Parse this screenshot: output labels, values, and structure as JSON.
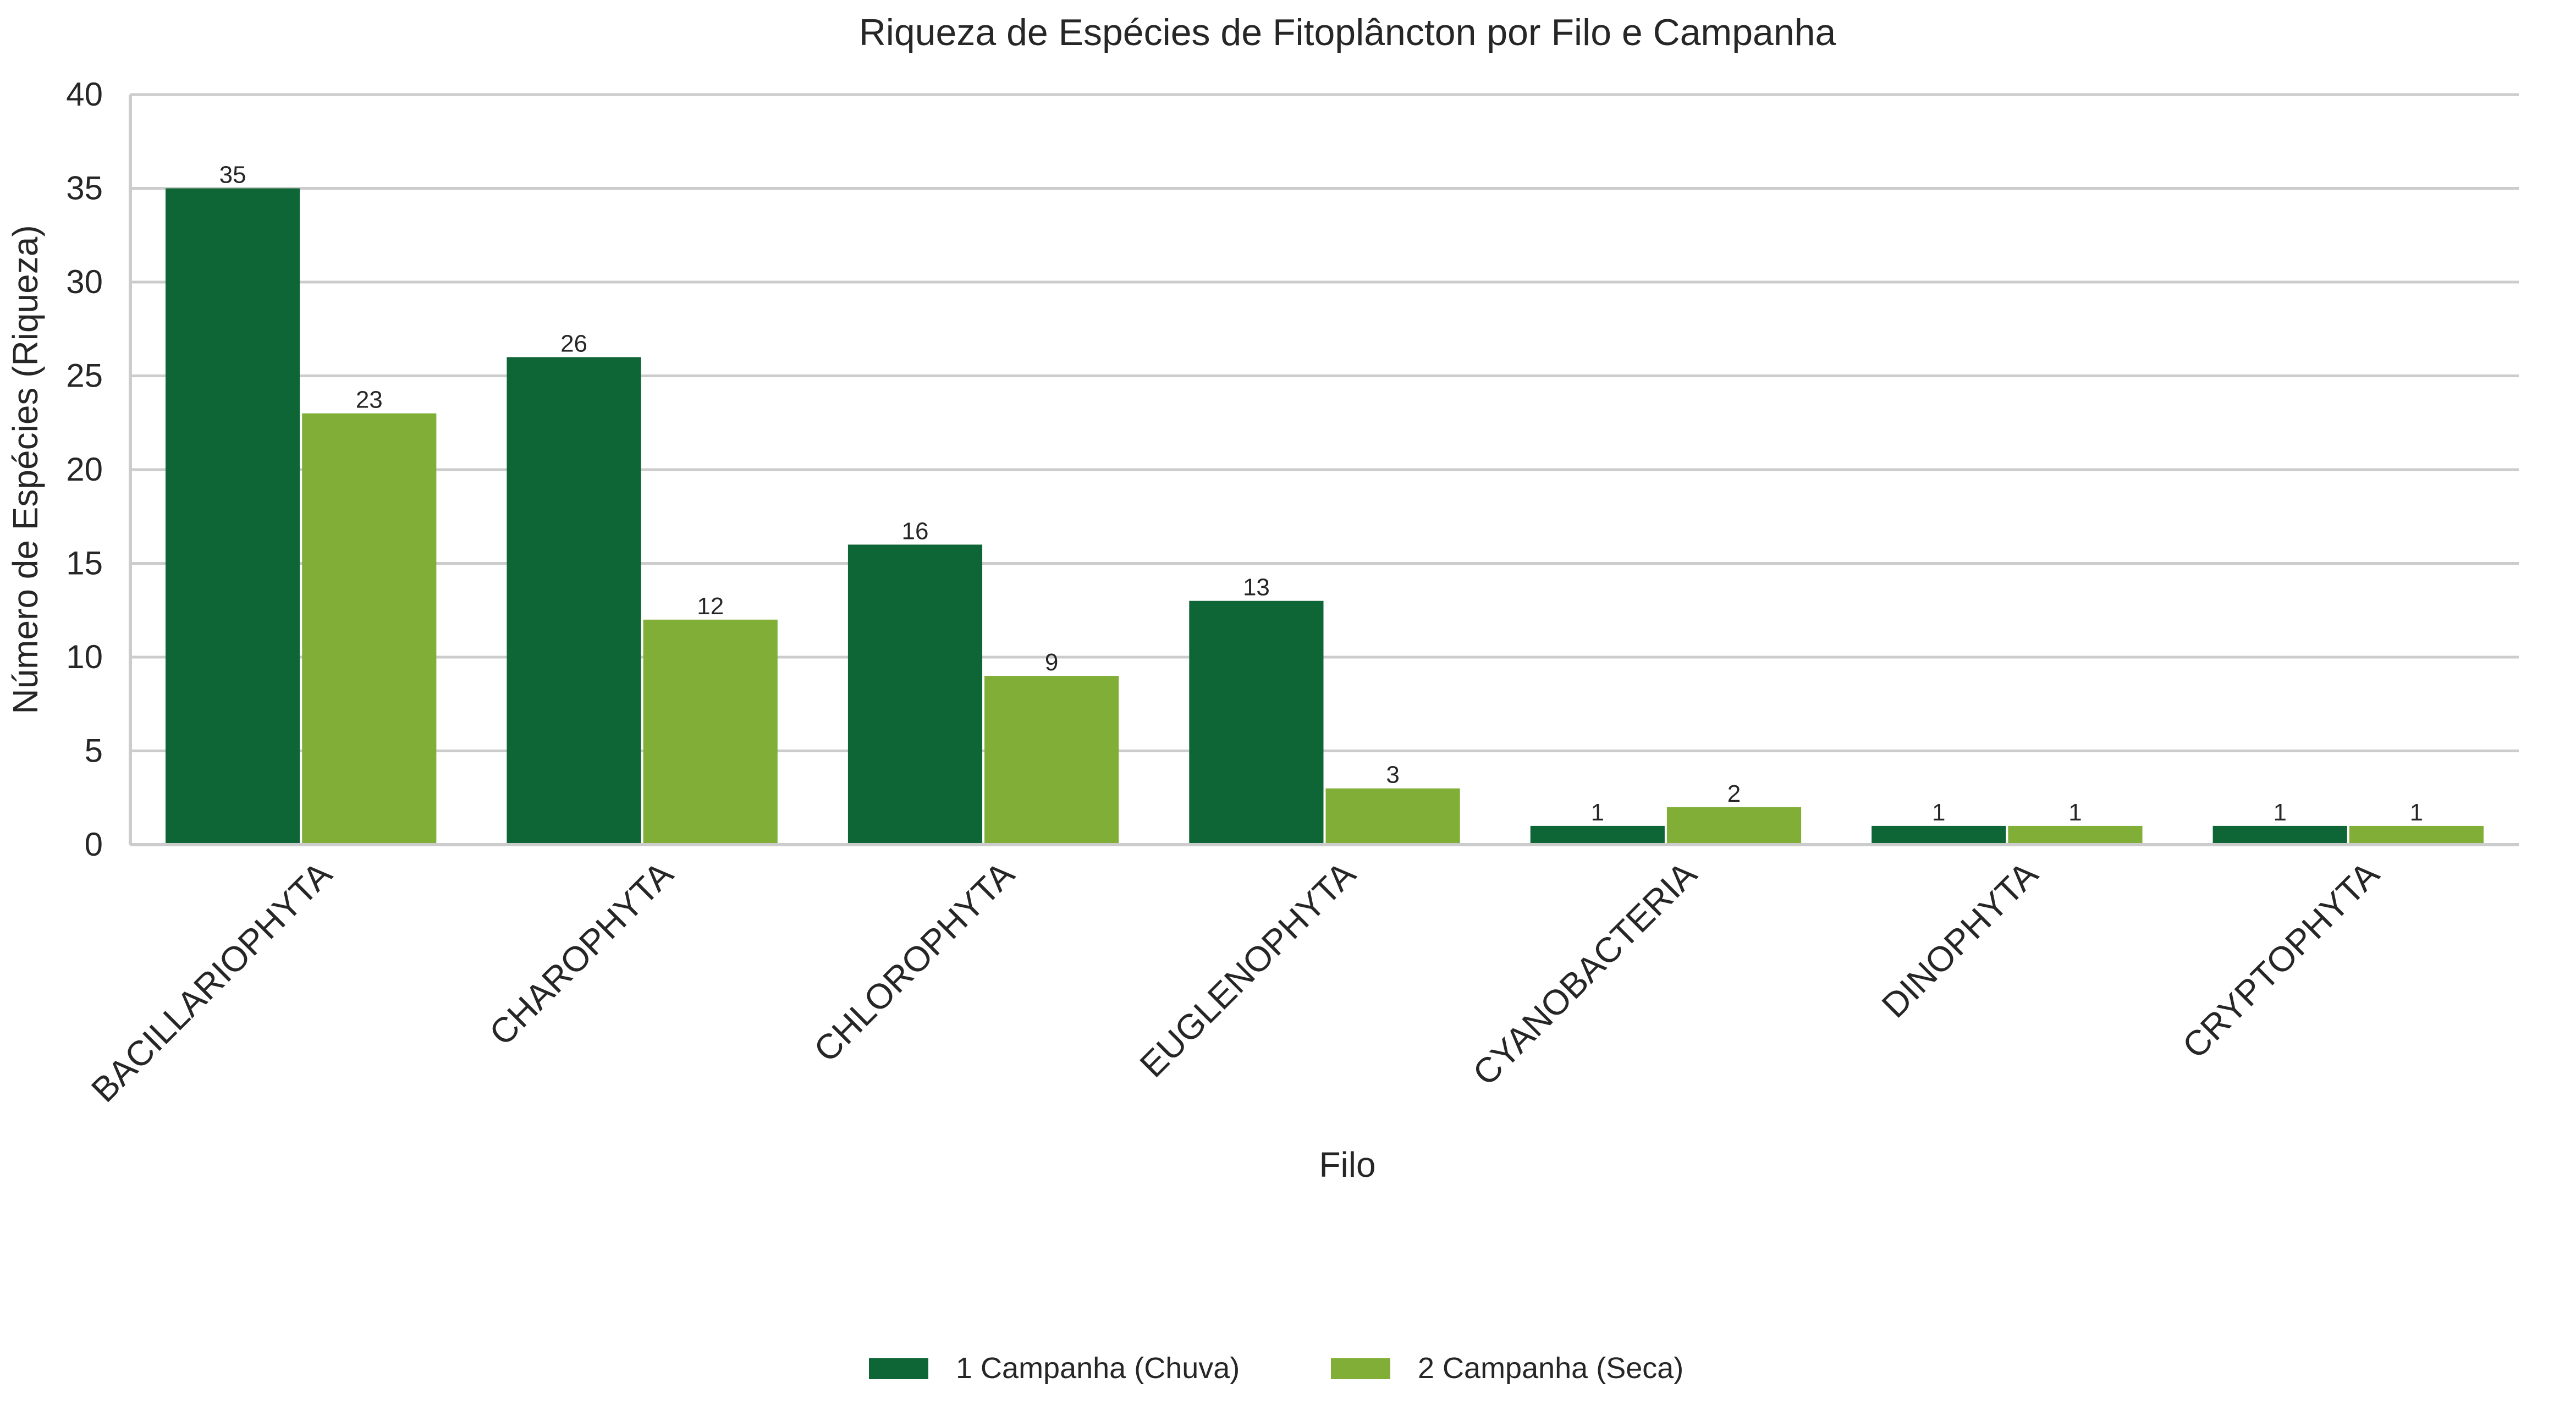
{
  "chart_data": {
    "type": "bar",
    "title": "Riqueza de Espécies de Fitoplâncton por Filo e Campanha",
    "xlabel": "Filo",
    "ylabel": "Número de Espécies (Riqueza)",
    "categories": [
      "BACILLARIOPHYTA",
      "CHAROPHYTA",
      "CHLOROPHYTA",
      "EUGLENOPHYTA",
      "CYANOBACTERIA",
      "DINOPHYTA",
      "CRYPTOPHYTA"
    ],
    "series": [
      {
        "name": "1 Campanha (Chuva)",
        "color": "#0e6535",
        "values": [
          35,
          26,
          16,
          13,
          1,
          1,
          1
        ]
      },
      {
        "name": "2 Campanha (Seca)",
        "color": "#80ae36",
        "values": [
          23,
          12,
          9,
          3,
          2,
          1,
          1
        ]
      }
    ],
    "ylim": [
      0,
      40
    ],
    "yticks": [
      0,
      5,
      10,
      15,
      20,
      25,
      30,
      35,
      40
    ],
    "grid": "horizontal",
    "legend_position": "bottom-center",
    "data_labels": true,
    "grid_color": "#cccccc"
  }
}
